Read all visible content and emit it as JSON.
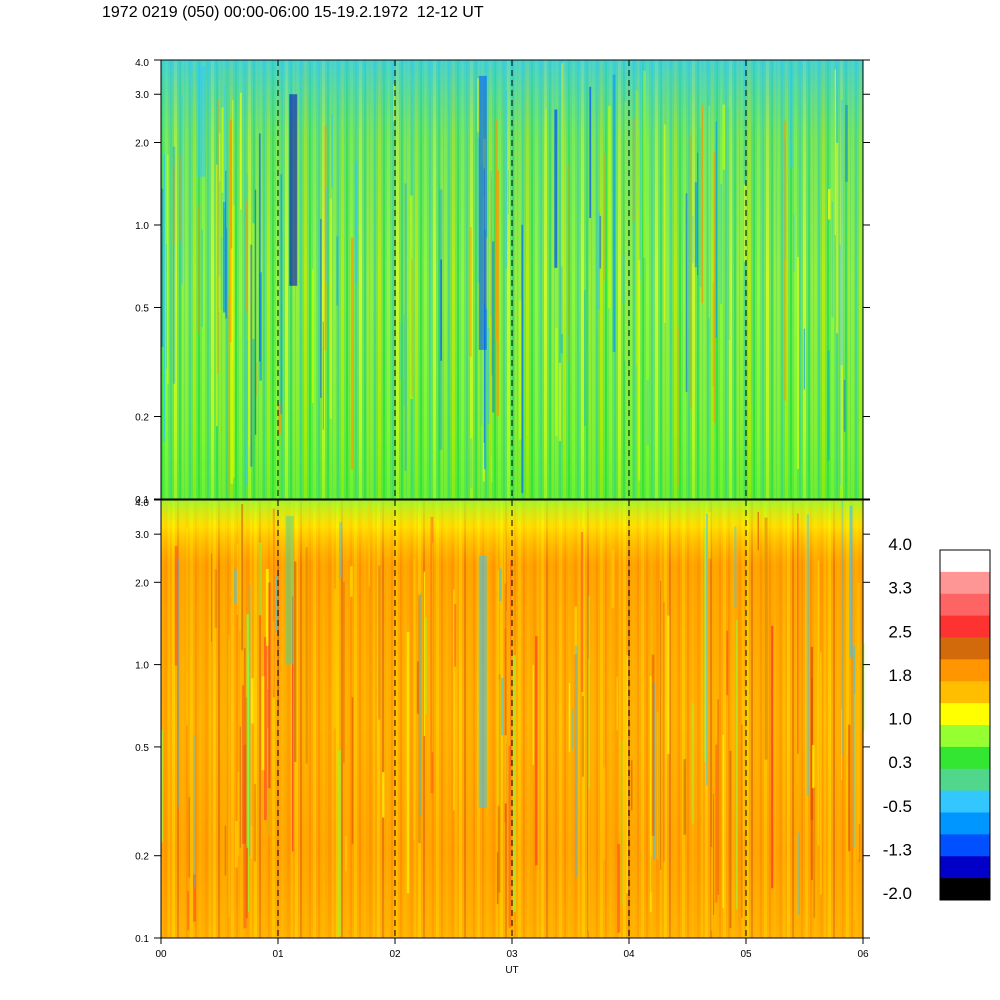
{
  "title": "1972 0219 (050) 00:00-06:00 15-19.2.1972  12-12 UT",
  "chart_data": [
    {
      "type": "heatmap",
      "name": "upper",
      "palette": "cool",
      "x_range": [
        0,
        6
      ],
      "ylim": [
        0.1,
        4.0
      ],
      "yscale": "log",
      "y_ticks": [
        0.1,
        0.2,
        0.5,
        1.0,
        2.0,
        3.0,
        4.0
      ],
      "y_tick_labels": [
        "0.1",
        "0.2",
        "0.5",
        "1.0",
        "2.0",
        "3.0",
        "4.0"
      ],
      "hour_markers": [
        1,
        2,
        3,
        4,
        5
      ]
    },
    {
      "type": "heatmap",
      "name": "lower",
      "palette": "warm",
      "x_range": [
        0,
        6
      ],
      "ylim": [
        0.1,
        4.0
      ],
      "yscale": "log",
      "y_ticks": [
        0.1,
        0.2,
        0.5,
        1.0,
        2.0,
        3.0,
        4.0
      ],
      "y_tick_labels": [
        "0.1",
        "0.2",
        "0.5",
        "1.0",
        "2.0",
        "3.0",
        "4.0"
      ],
      "hour_markers": [
        1,
        2,
        3,
        4,
        5
      ]
    }
  ],
  "x_ticks": [
    0,
    1,
    2,
    3,
    4,
    5,
    6
  ],
  "x_tick_labels": [
    "00",
    "01",
    "02",
    "03",
    "04",
    "05",
    "06"
  ],
  "xlabel": "UT",
  "colorbar": {
    "labels": [
      "4.0",
      "3.3",
      "2.5",
      "1.8",
      "1.0",
      "0.3",
      "-0.5",
      "-1.3",
      "-2.0"
    ],
    "colors": [
      "#ffffff",
      "#ff9696",
      "#ff6464",
      "#ff3232",
      "#d2690a",
      "#ff9600",
      "#ffbe00",
      "#ffff00",
      "#96ff32",
      "#32e632",
      "#50d78c",
      "#32c8ff",
      "#0096ff",
      "#0050ff",
      "#0000c8",
      "#000000"
    ]
  }
}
